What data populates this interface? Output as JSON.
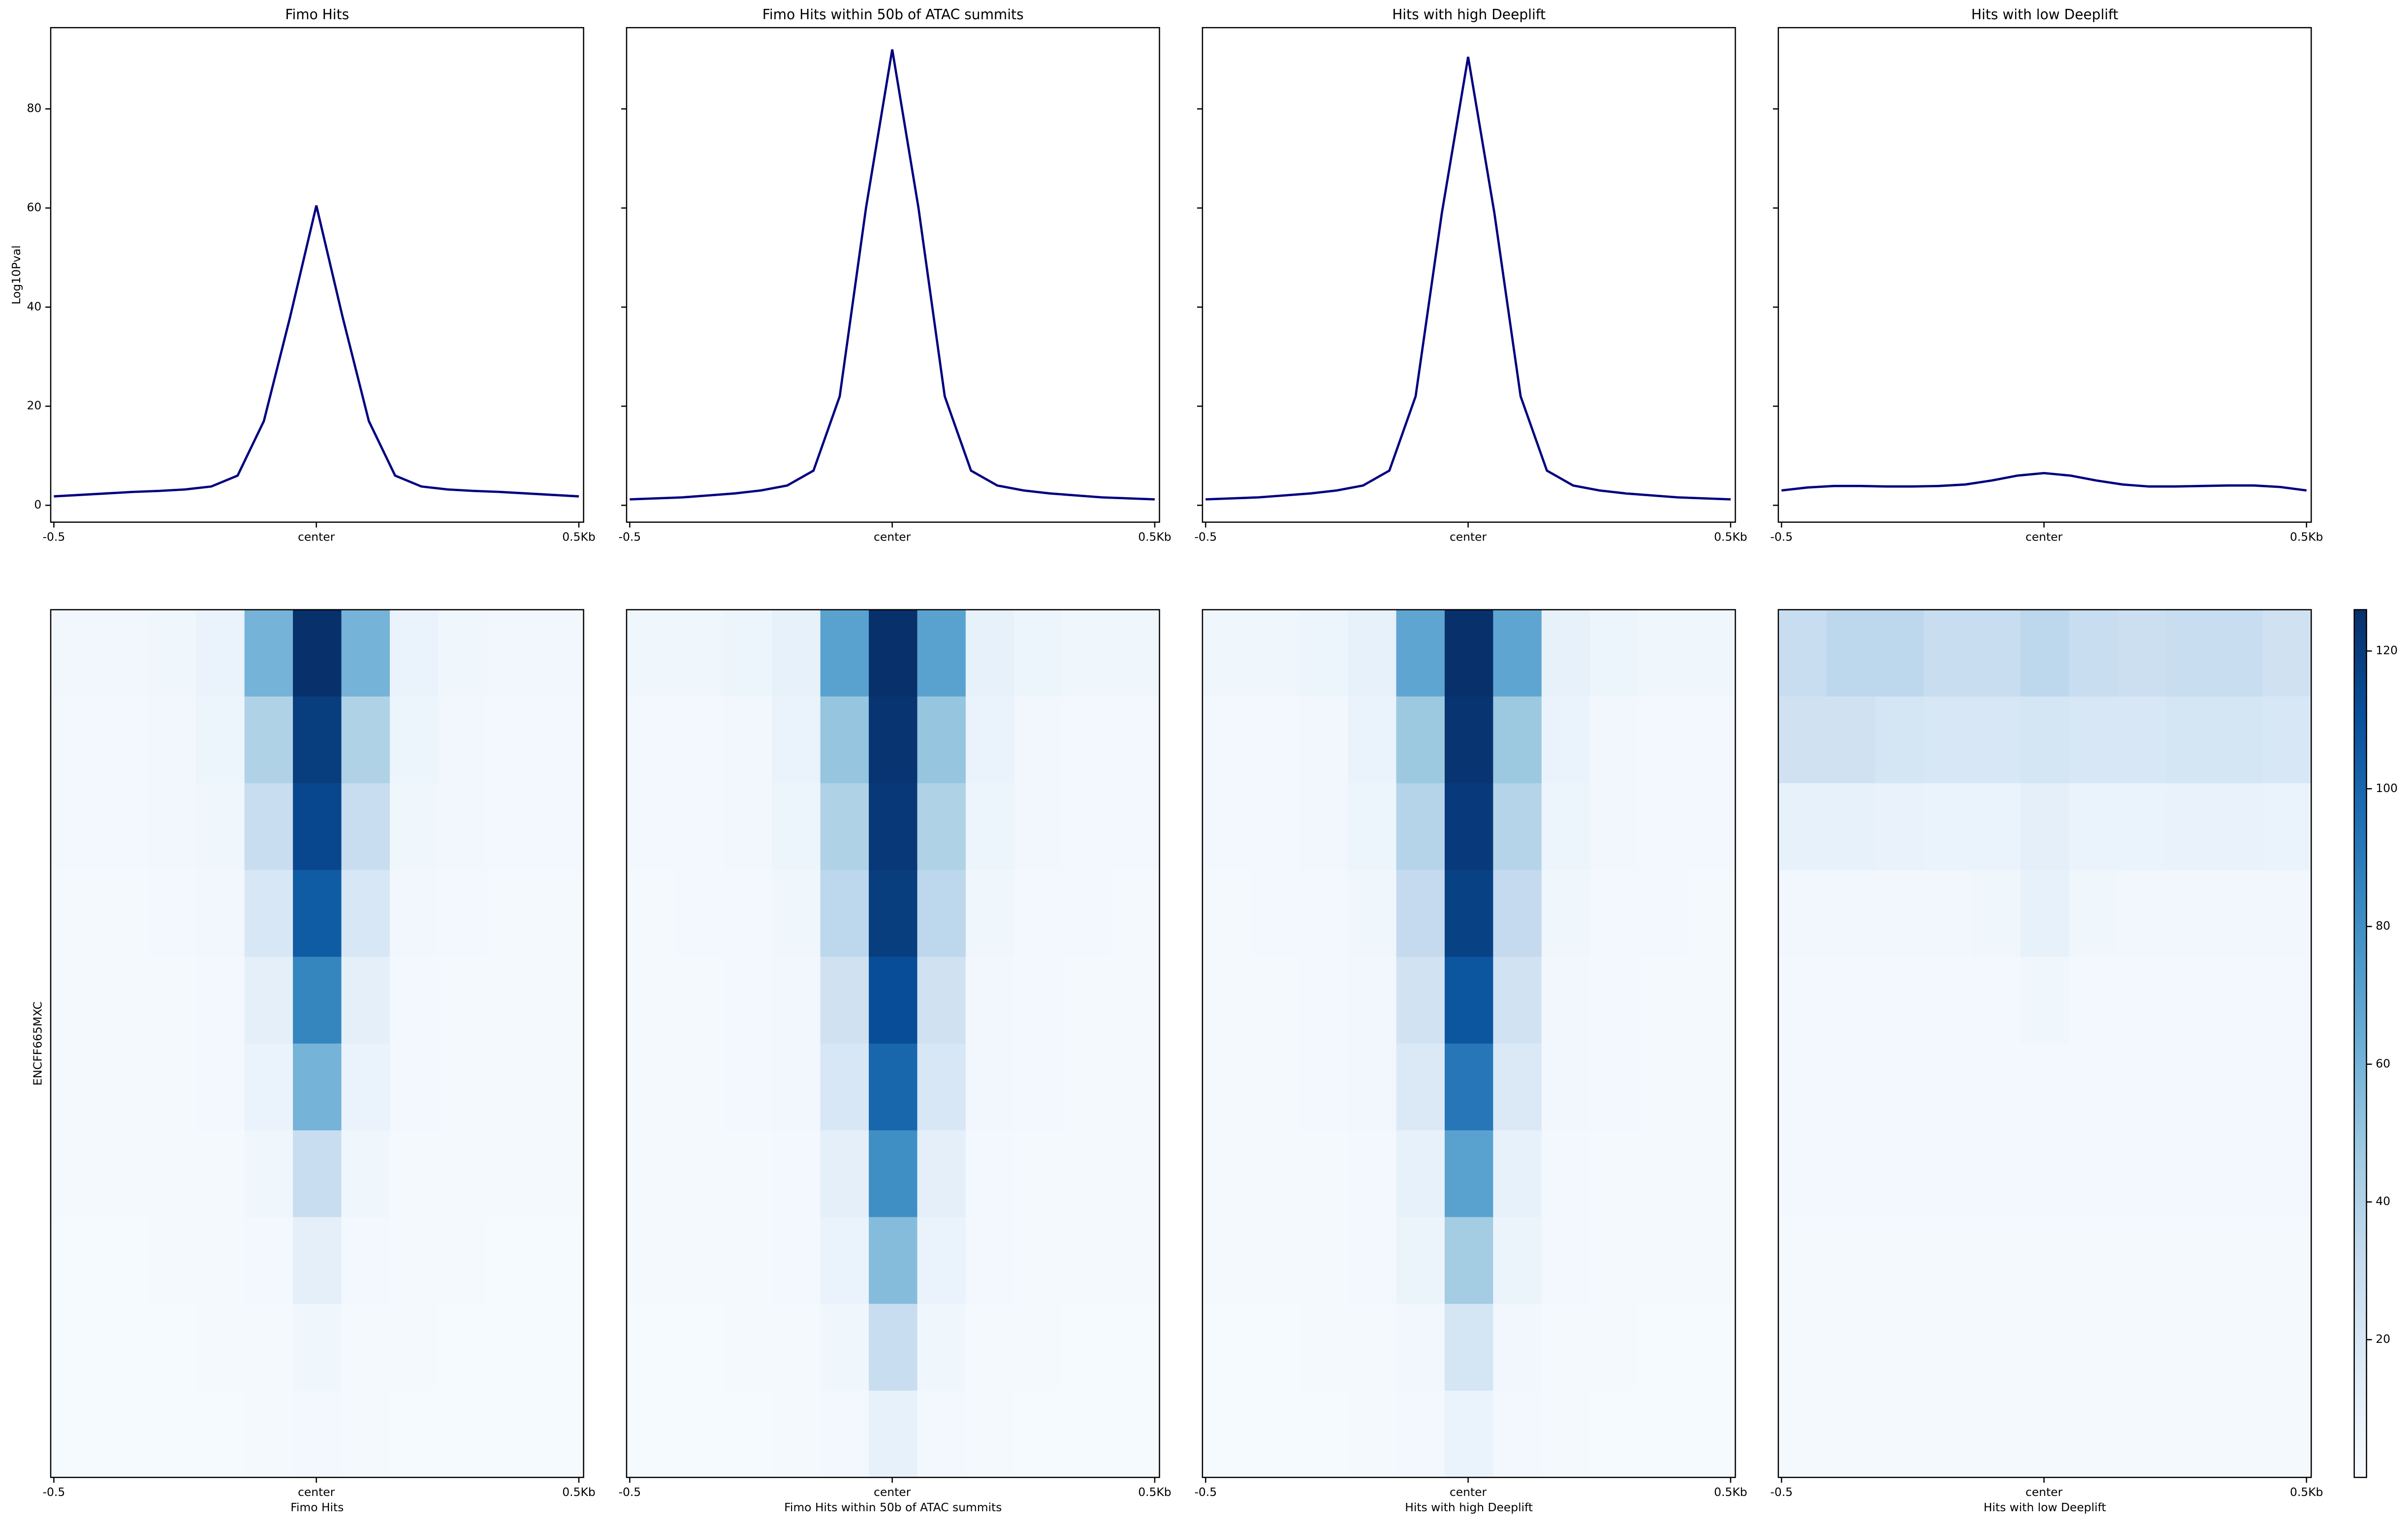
{
  "chart_data": [
    {
      "type": "line",
      "title": "Fimo Hits",
      "ylabel": "Log10Pval",
      "ytick_labels": true,
      "color": "#000080",
      "x": [
        -0.5,
        -0.45,
        -0.4,
        -0.35,
        -0.3,
        -0.25,
        -0.2,
        -0.15,
        -0.1,
        -0.05,
        0,
        0.05,
        0.1,
        0.15,
        0.2,
        0.25,
        0.3,
        0.35,
        0.4,
        0.45,
        0.5
      ],
      "values": [
        1.8,
        2.1,
        2.4,
        2.7,
        2.9,
        3.2,
        3.8,
        6,
        17,
        38,
        60.5,
        38,
        17,
        6,
        3.8,
        3.2,
        2.9,
        2.7,
        2.4,
        2.1,
        1.8
      ],
      "xlim": [
        -0.506,
        0.509
      ],
      "xticks": [
        -0.5,
        {
          "value": 0,
          "label": "center"
        },
        {
          "value": 0.5,
          "label": "0.5Kb"
        }
      ],
      "ylim": [
        -3.4,
        96.4
      ],
      "yticks": [
        0,
        20,
        40,
        60,
        80
      ]
    },
    {
      "type": "line",
      "title": "Fimo Hits within 50b of ATAC summits",
      "ytick_labels": false,
      "color": "#000080",
      "x": [
        -0.5,
        -0.45,
        -0.4,
        -0.35,
        -0.3,
        -0.25,
        -0.2,
        -0.15,
        -0.1,
        -0.05,
        0,
        0.05,
        0.1,
        0.15,
        0.2,
        0.25,
        0.3,
        0.35,
        0.4,
        0.45,
        0.5
      ],
      "values": [
        1.2,
        1.4,
        1.6,
        2,
        2.4,
        3,
        4,
        7,
        22,
        60,
        92,
        60,
        22,
        7,
        4,
        3,
        2.4,
        2,
        1.6,
        1.4,
        1.2
      ],
      "xlim": [
        -0.506,
        0.509
      ],
      "xticks": [
        -0.5,
        {
          "value": 0,
          "label": "center"
        },
        {
          "value": 0.5,
          "label": "0.5Kb"
        }
      ],
      "ylim": [
        -3.4,
        96.4
      ],
      "yticks": [
        0,
        20,
        40,
        60,
        80
      ]
    },
    {
      "type": "line",
      "title": "Hits with high Deeplift",
      "ytick_labels": false,
      "color": "#000080",
      "x": [
        -0.5,
        -0.45,
        -0.4,
        -0.35,
        -0.3,
        -0.25,
        -0.2,
        -0.15,
        -0.1,
        -0.05,
        0,
        0.05,
        0.1,
        0.15,
        0.2,
        0.25,
        0.3,
        0.35,
        0.4,
        0.45,
        0.5
      ],
      "values": [
        1.2,
        1.4,
        1.6,
        2,
        2.4,
        3,
        4,
        7,
        22,
        59,
        90.5,
        59,
        22,
        7,
        4,
        3,
        2.4,
        2,
        1.6,
        1.4,
        1.2
      ],
      "xlim": [
        -0.506,
        0.509
      ],
      "xticks": [
        -0.5,
        {
          "value": 0,
          "label": "center"
        },
        {
          "value": 0.5,
          "label": "0.5Kb"
        }
      ],
      "ylim": [
        -3.4,
        96.4
      ],
      "yticks": [
        0,
        20,
        40,
        60,
        80
      ]
    },
    {
      "type": "line",
      "title": "Hits with low Deeplift",
      "ytick_labels": false,
      "color": "#000080",
      "x": [
        -0.5,
        -0.45,
        -0.4,
        -0.35,
        -0.3,
        -0.25,
        -0.2,
        -0.15,
        -0.1,
        -0.05,
        0,
        0.05,
        0.1,
        0.15,
        0.2,
        0.25,
        0.3,
        0.35,
        0.4,
        0.45,
        0.5
      ],
      "values": [
        3,
        3.6,
        3.9,
        3.9,
        3.8,
        3.8,
        3.9,
        4.2,
        5,
        6,
        6.5,
        6,
        5,
        4.2,
        3.8,
        3.8,
        3.9,
        4,
        4,
        3.7,
        3
      ],
      "xlim": [
        -0.506,
        0.509
      ],
      "xticks": [
        -0.5,
        {
          "value": 0,
          "label": "center"
        },
        {
          "value": 0.5,
          "label": "0.5Kb"
        }
      ],
      "ylim": [
        -3.4,
        96.4
      ],
      "yticks": [
        0,
        20,
        40,
        60,
        80
      ]
    },
    {
      "type": "heatmap",
      "xlabel": "Fimo Hits",
      "ylabel": "ENCFF665MXC",
      "xlim": [
        -0.506,
        0.509
      ],
      "xticks": [
        -0.5,
        {
          "value": 0,
          "label": "center"
        },
        {
          "value": 0.5,
          "label": "0.5Kb"
        }
      ],
      "values": [
        [
          4,
          4,
          5,
          8,
          60,
          126,
          60,
          8,
          5,
          4,
          4
        ],
        [
          3,
          3,
          4,
          6,
          40,
          120,
          40,
          6,
          4,
          3,
          3
        ],
        [
          3,
          3,
          4,
          5,
          30,
          115,
          30,
          5,
          4,
          3,
          3
        ],
        [
          2,
          2,
          3,
          4,
          20,
          105,
          20,
          4,
          3,
          2,
          2
        ],
        [
          2,
          2,
          2,
          3,
          12,
          85,
          12,
          3,
          2,
          2,
          2
        ],
        [
          2,
          2,
          2,
          3,
          8,
          60,
          8,
          3,
          2,
          2,
          2
        ],
        [
          2,
          2,
          2,
          2,
          5,
          30,
          5,
          2,
          2,
          2,
          2
        ],
        [
          1,
          1,
          2,
          2,
          3,
          12,
          3,
          2,
          2,
          1,
          1
        ],
        [
          1,
          1,
          1,
          2,
          2,
          5,
          2,
          2,
          1,
          1,
          1
        ],
        [
          1,
          1,
          1,
          1,
          2,
          3,
          2,
          1,
          1,
          1,
          1
        ]
      ]
    },
    {
      "type": "heatmap",
      "xlabel": "Fimo Hits within 50b of ATAC summits",
      "xlim": [
        -0.506,
        0.509
      ],
      "xticks": [
        -0.5,
        {
          "value": 0,
          "label": "center"
        },
        {
          "value": 0.5,
          "label": "0.5Kb"
        }
      ],
      "values": [
        [
          5,
          5,
          6,
          10,
          70,
          126,
          70,
          10,
          6,
          5,
          5
        ],
        [
          3,
          3,
          4,
          8,
          50,
          124,
          50,
          8,
          4,
          3,
          3
        ],
        [
          3,
          3,
          4,
          6,
          40,
          122,
          40,
          6,
          4,
          3,
          3
        ],
        [
          2,
          3,
          3,
          5,
          35,
          120,
          35,
          5,
          3,
          3,
          2
        ],
        [
          2,
          2,
          3,
          4,
          25,
          112,
          25,
          4,
          3,
          2,
          2
        ],
        [
          2,
          2,
          3,
          4,
          20,
          100,
          20,
          4,
          3,
          2,
          2
        ],
        [
          2,
          2,
          2,
          3,
          12,
          80,
          12,
          3,
          2,
          2,
          2
        ],
        [
          2,
          2,
          2,
          3,
          8,
          55,
          8,
          3,
          2,
          2,
          2
        ],
        [
          1,
          1,
          2,
          2,
          5,
          30,
          5,
          2,
          2,
          1,
          1
        ],
        [
          1,
          1,
          1,
          2,
          3,
          10,
          3,
          2,
          1,
          1,
          1
        ]
      ]
    },
    {
      "type": "heatmap",
      "xlabel": "Hits with high Deeplift",
      "xlim": [
        -0.506,
        0.509
      ],
      "xticks": [
        -0.5,
        {
          "value": 0,
          "label": "center"
        },
        {
          "value": 0.5,
          "label": "0.5Kb"
        }
      ],
      "values": [
        [
          5,
          5,
          6,
          10,
          68,
          126,
          68,
          10,
          6,
          5,
          5
        ],
        [
          3,
          3,
          4,
          8,
          48,
          124,
          48,
          8,
          4,
          3,
          3
        ],
        [
          3,
          3,
          4,
          6,
          38,
          121,
          38,
          6,
          4,
          3,
          3
        ],
        [
          2,
          3,
          3,
          5,
          32,
          118,
          32,
          5,
          3,
          3,
          2
        ],
        [
          2,
          2,
          3,
          4,
          24,
          108,
          24,
          4,
          3,
          2,
          2
        ],
        [
          2,
          2,
          3,
          4,
          18,
          92,
          18,
          4,
          3,
          2,
          2
        ],
        [
          2,
          2,
          2,
          3,
          10,
          70,
          10,
          3,
          2,
          2,
          2
        ],
        [
          2,
          2,
          2,
          3,
          7,
          45,
          7,
          3,
          2,
          2,
          2
        ],
        [
          1,
          1,
          2,
          2,
          4,
          22,
          4,
          2,
          2,
          1,
          1
        ],
        [
          1,
          1,
          1,
          2,
          3,
          8,
          3,
          2,
          1,
          1,
          1
        ]
      ]
    },
    {
      "type": "heatmap",
      "xlabel": "Hits with low Deeplift",
      "xlim": [
        -0.506,
        0.509
      ],
      "xticks": [
        -0.5,
        {
          "value": 0,
          "label": "center"
        },
        {
          "value": 0.5,
          "label": "0.5Kb"
        }
      ],
      "values": [
        [
          30,
          35,
          35,
          30,
          30,
          35,
          30,
          28,
          30,
          30,
          25
        ],
        [
          25,
          25,
          22,
          20,
          20,
          22,
          20,
          20,
          22,
          22,
          20
        ],
        [
          10,
          10,
          9,
          8,
          8,
          12,
          8,
          8,
          9,
          9,
          8
        ],
        [
          4,
          4,
          4,
          4,
          5,
          10,
          5,
          4,
          4,
          4,
          4
        ],
        [
          3,
          3,
          3,
          3,
          3,
          5,
          3,
          3,
          3,
          3,
          3
        ],
        [
          3,
          3,
          3,
          3,
          3,
          3,
          3,
          3,
          3,
          3,
          3
        ],
        [
          3,
          3,
          3,
          3,
          3,
          3,
          3,
          3,
          3,
          3,
          3
        ],
        [
          2,
          2,
          2,
          2,
          2,
          2,
          2,
          2,
          2,
          2,
          2
        ],
        [
          2,
          2,
          2,
          2,
          2,
          2,
          2,
          2,
          2,
          2,
          2
        ],
        [
          2,
          2,
          2,
          2,
          2,
          2,
          2,
          2,
          2,
          2,
          2
        ]
      ]
    },
    {
      "type": "colorbar",
      "colormap": "Blues",
      "ylim": [
        0,
        126
      ],
      "yticks": [
        20,
        40,
        60,
        80,
        100,
        120
      ]
    }
  ]
}
